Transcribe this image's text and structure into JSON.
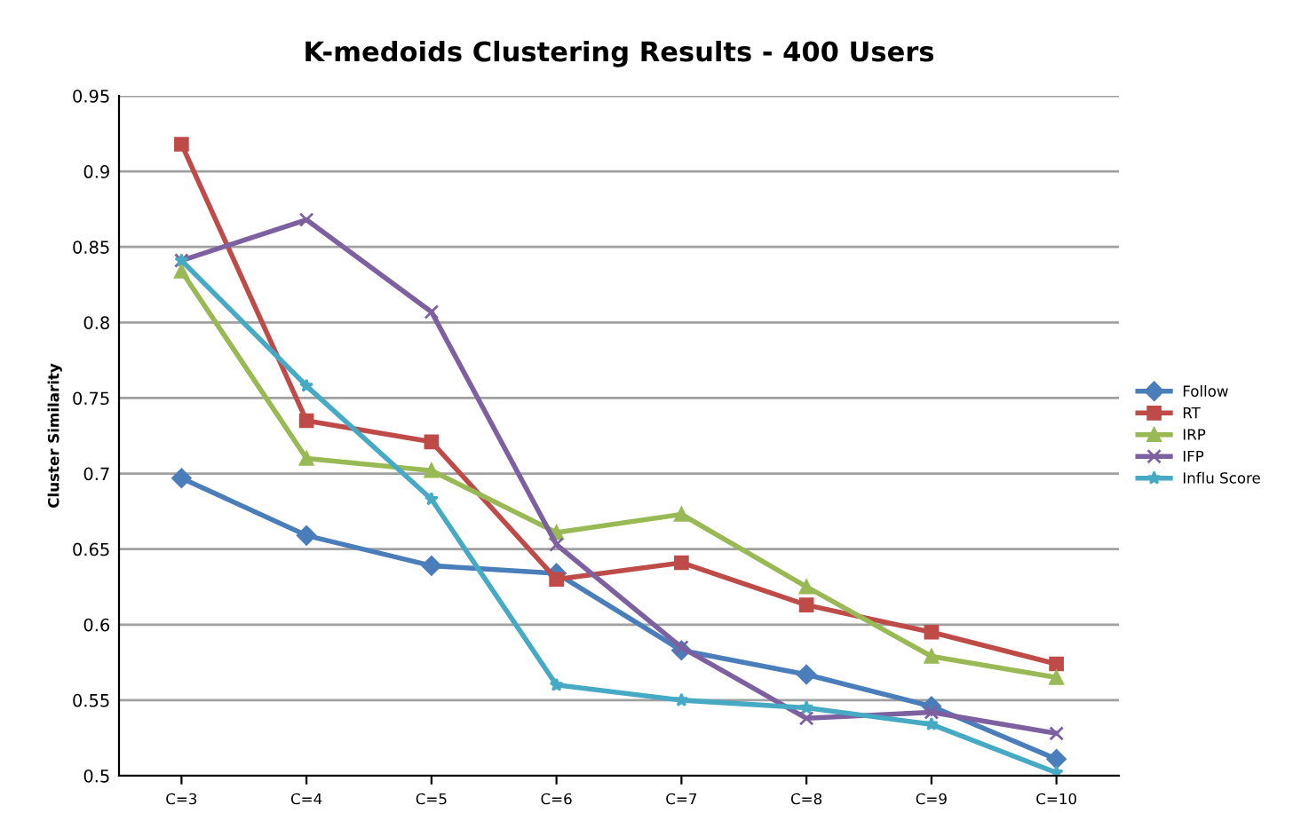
{
  "chart_data": {
    "type": "line",
    "title": "K-medoids Clustering Results - 400 Users",
    "ylabel": "Cluster Similarity",
    "categories": [
      "C=3",
      "C=4",
      "C=5",
      "C=6",
      "C=7",
      "C=8",
      "C=9",
      "C=10"
    ],
    "series": [
      {
        "name": "Follow",
        "color": "#4a7ebb",
        "marker": "diamond",
        "values": [
          0.697,
          0.659,
          0.639,
          0.634,
          0.583,
          0.567,
          0.546,
          0.511
        ]
      },
      {
        "name": "RT",
        "color": "#be4b48",
        "marker": "square",
        "values": [
          0.918,
          0.735,
          0.721,
          0.63,
          0.641,
          0.613,
          0.595,
          0.574
        ]
      },
      {
        "name": "IRP",
        "color": "#98b954",
        "marker": "triangle",
        "values": [
          0.834,
          0.71,
          0.702,
          0.661,
          0.673,
          0.625,
          0.579,
          0.565
        ]
      },
      {
        "name": "IFP",
        "color": "#7d60a0",
        "marker": "cross",
        "values": [
          0.841,
          0.868,
          0.807,
          0.653,
          0.585,
          0.538,
          0.542,
          0.528
        ]
      },
      {
        "name": "Influ Score",
        "color": "#46aac5",
        "marker": "star",
        "values": [
          0.841,
          0.758,
          0.683,
          0.56,
          0.55,
          0.545,
          0.534,
          0.502
        ]
      }
    ],
    "ylim": [
      0.5,
      0.95
    ],
    "yticks": [
      0.5,
      0.55,
      0.6,
      0.65,
      0.7,
      0.75,
      0.8,
      0.85,
      0.9,
      0.95
    ],
    "grid": "y",
    "legend": "right"
  }
}
